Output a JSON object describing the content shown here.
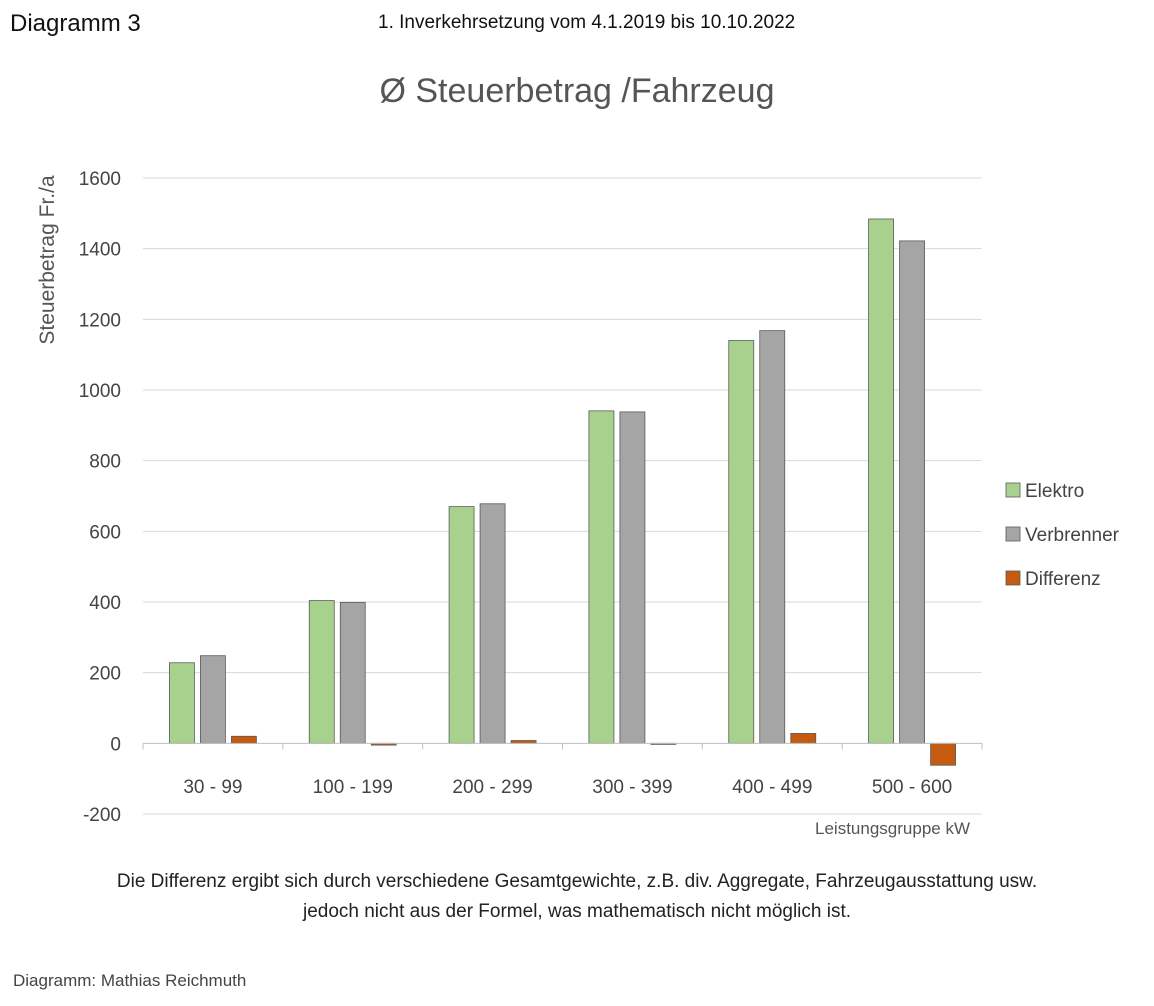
{
  "header": {
    "diagram_label": "Diagramm 3",
    "period": "1. Inverkehrsetzung vom 4.1.2019 bis 10.10.2022"
  },
  "chart_data": {
    "type": "bar",
    "title": "Ø Steuerbetrag /Fahrzeug",
    "ylabel": "Steuerbetrag Fr./a",
    "xlabel": "Leistungsgruppe kW",
    "ylim": [
      -200,
      1600
    ],
    "yticks": [
      -200,
      0,
      200,
      400,
      600,
      800,
      1000,
      1200,
      1400,
      1600
    ],
    "grid": true,
    "legend_position": "right",
    "categories": [
      "30 - 99",
      "100 - 199",
      "200 - 299",
      "300 - 399",
      "400 - 499",
      "500 - 600"
    ],
    "series": [
      {
        "name": "Elektro",
        "color": "#a9d18e",
        "values": [
          228,
          404,
          670,
          941,
          1140,
          1484
        ]
      },
      {
        "name": "Verbrenner",
        "color": "#a5a5a5",
        "values": [
          248,
          399,
          678,
          938,
          1168,
          1422
        ]
      },
      {
        "name": "Differenz",
        "color": "#c55a11",
        "values": [
          20,
          -5,
          8,
          -3,
          28,
          -62
        ]
      }
    ]
  },
  "footnote": {
    "line1": "Die Differenz ergibt sich durch verschiedene Gesamtgewichte, z.B. div. Aggregate, Fahrzeugausstattung usw.",
    "line2": "jedoch nicht aus der Formel, was mathematisch nicht möglich ist."
  },
  "credit": "Diagramm: Mathias Reichmuth"
}
